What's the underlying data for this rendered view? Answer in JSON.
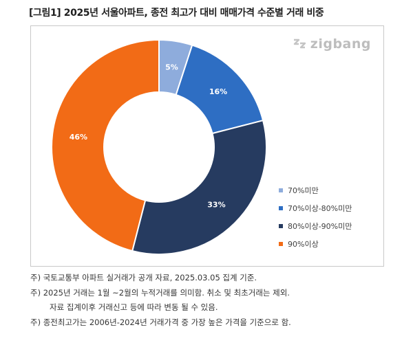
{
  "title": "[그림1] 2025년 서울아파트, 종전 최고가 대비 매매가격 수준별 거래 비중",
  "logo": {
    "text": "zigbang",
    "icon": "zigbang-logo-icon"
  },
  "chart_data": {
    "type": "pie",
    "donut": true,
    "title": "",
    "legend_position": "right",
    "categories": [
      "70%미만",
      "70%이상-80%미만",
      "80%이상-90%미만",
      "90%이상"
    ],
    "values": [
      5,
      16,
      33,
      46
    ],
    "data_labels": [
      "5%",
      "16%",
      "33%",
      "46%"
    ],
    "colors": [
      "#8eacdc",
      "#2e6ec3",
      "#263b60",
      "#f26b16"
    ]
  },
  "notes": [
    "주) 국토교통부 아파트 실거래가 공개 자료, 2025.03.05 집계 기준.",
    "주) 2025년 거래는 1월 ~2월의 누적거래를 의미함. 취소 및 최초거래는 제외.",
    "자료 집계이후 거래신고 등에 따라 변동 될 수 있음.",
    "주) 종전최고가는 2006년-2024년 거래가격 중 가장 높은 가격을 기준으로 함."
  ]
}
